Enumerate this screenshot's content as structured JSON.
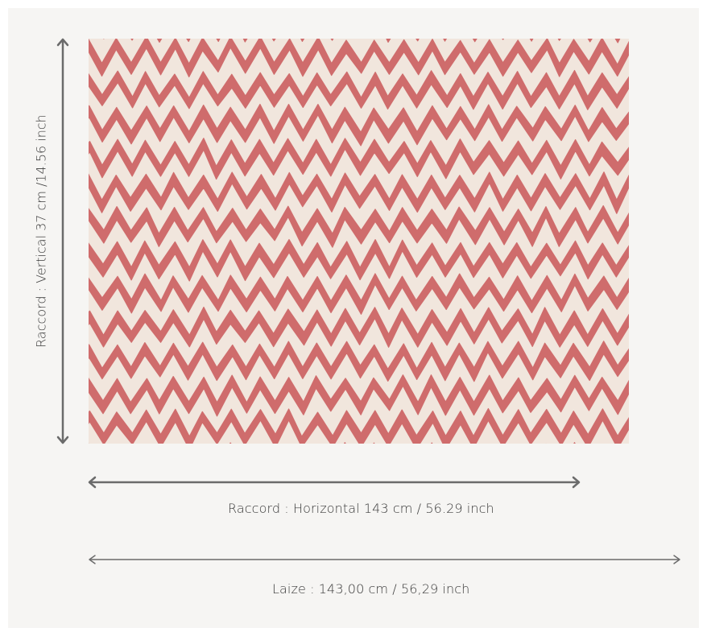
{
  "dimensions": {
    "vertical_repeat_label": "Raccord : Vertical 37 cm /14.56 inch",
    "horizontal_repeat_label": "Raccord : Horizontal 143 cm / 56.29 inch",
    "width_label": "Laize : 143,00 cm / 56,29 inch"
  },
  "swatch": {
    "pattern": "zigzag-chevron",
    "colors": {
      "background": "#f1e6dd",
      "stripe": "#cf6c6c"
    }
  },
  "colors": {
    "panel_background": "#f6f5f3",
    "arrow": "#6b6b6b",
    "text": "#3a3a3a"
  }
}
